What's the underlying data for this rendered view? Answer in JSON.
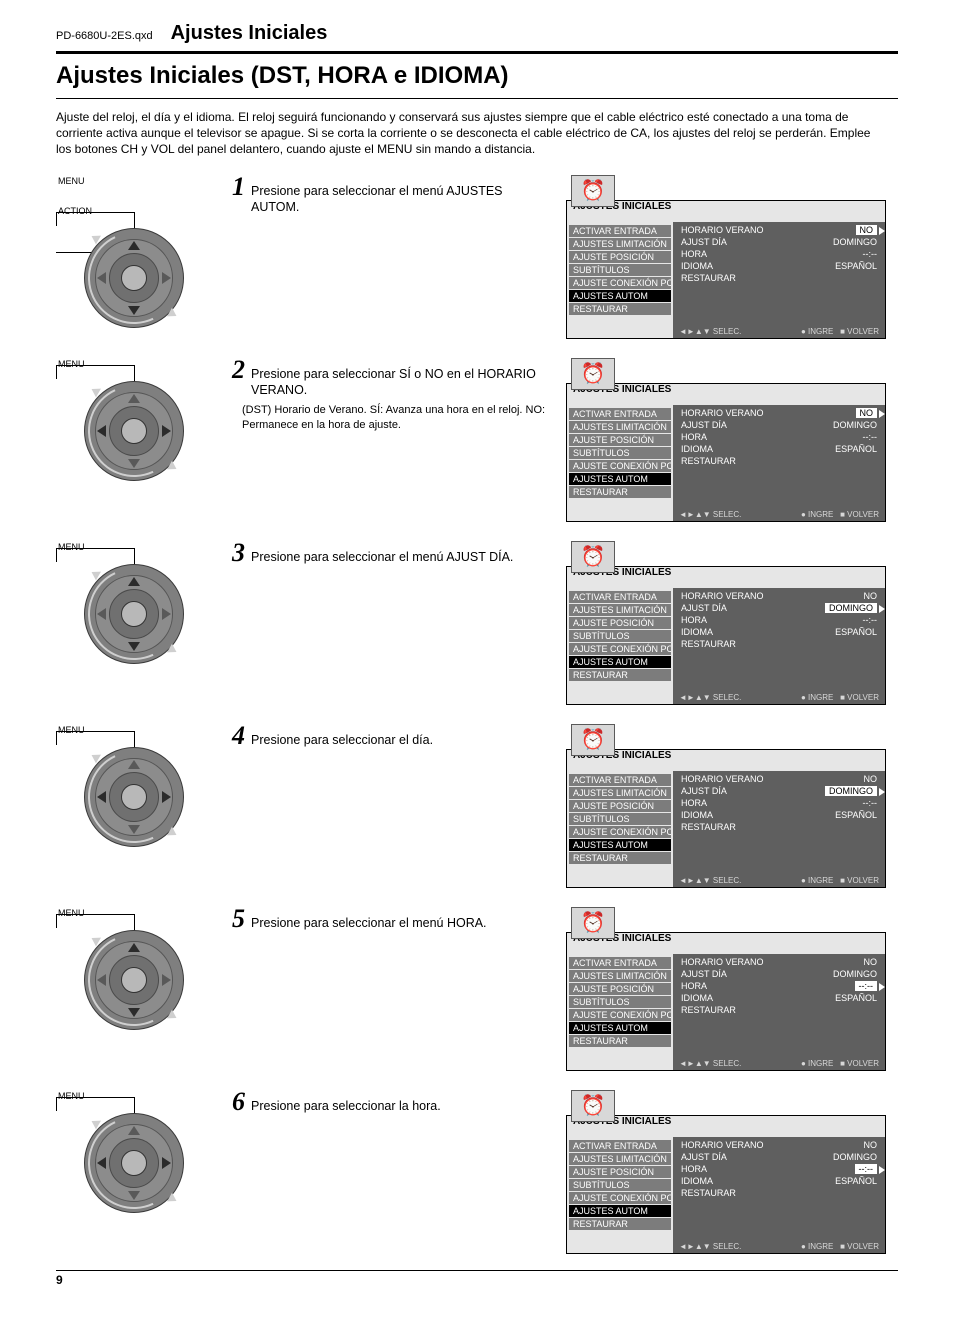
{
  "doc_name": "PD-6680U-2ES.qxd",
  "section_title": "Ajustes Iniciales",
  "page_title": "Ajustes Iniciales (DST, HORA e IDIOMA)",
  "intro_text": "Ajuste del reloj, el día y el idioma. El reloj seguirá funcionando y conservará sus ajustes siempre que el cable eléctrico esté conectado a una toma de corriente activa aunque el televisor se apague. Si se corta la corriente o se desconecta el cable eléctrico de CA, los ajustes del reloj se perderán. Emplee los botones CH y VOL del panel delantero, cuando ajuste el MENU sin mando a distancia.",
  "page_number": "9",
  "common_menu": {
    "title": "AJUSTES INICIALES",
    "items": [
      "ACTIVAR ENTRADA",
      "AJUSTES LIMITACIÓN",
      "AJUSTE POSICIÓN",
      "SUBTÍTULOS",
      "AJUSTE CONEXIÓN PC",
      "AJUSTES AUTOM",
      "RESTAURAR"
    ],
    "selected_index": 5,
    "hint_left": "SELEC.",
    "hint_right_enter": "INGRE",
    "hint_right_back": "VOLVER",
    "clock_icon_label": "clock-icon"
  },
  "steps": [
    {
      "num": "1",
      "text": "Presione para seleccionar el menú AJUSTES AUTOM.",
      "callouts": [
        "MENU",
        "ACTION"
      ],
      "highlight": [
        "up",
        "down",
        "center"
      ],
      "values": [
        {
          "k": "HORARIO VERANO",
          "v": "NO",
          "box": true,
          "sel": true
        },
        {
          "k": "AJUST DÍA",
          "v": "DOMINGO"
        },
        {
          "k": "HORA",
          "v": "--:--"
        },
        {
          "k": "IDIOMA",
          "v": "ESPAÑOL"
        },
        {
          "k": "RESTAURAR",
          "v": ""
        }
      ]
    },
    {
      "num": "2",
      "text": "Presione para seleccionar SÍ o NO en el HORARIO VERANO.",
      "note": "(DST) Horario de Verano. SÍ: Avanza una hora en el reloj. NO: Permanece en la hora de ajuste.",
      "callouts": [
        "MENU"
      ],
      "highlight": [
        "left",
        "right",
        "center"
      ],
      "values": [
        {
          "k": "HORARIO VERANO",
          "v": "NO",
          "box": true,
          "sel": true
        },
        {
          "k": "AJUST DÍA",
          "v": "DOMINGO"
        },
        {
          "k": "HORA",
          "v": "--:--"
        },
        {
          "k": "IDIOMA",
          "v": "ESPAÑOL"
        },
        {
          "k": "RESTAURAR",
          "v": ""
        }
      ]
    },
    {
      "num": "3",
      "text": "Presione para seleccionar el menú AJUST DÍA.",
      "callouts": [
        "MENU"
      ],
      "highlight": [
        "up",
        "down",
        "center"
      ],
      "values": [
        {
          "k": "HORARIO VERANO",
          "v": "NO"
        },
        {
          "k": "AJUST DÍA",
          "v": "DOMINGO",
          "box": true,
          "sel": true
        },
        {
          "k": "HORA",
          "v": "--:--"
        },
        {
          "k": "IDIOMA",
          "v": "ESPAÑOL"
        },
        {
          "k": "RESTAURAR",
          "v": ""
        }
      ]
    },
    {
      "num": "4",
      "text": "Presione para seleccionar el día.",
      "callouts": [
        "MENU"
      ],
      "highlight": [
        "left",
        "right",
        "center"
      ],
      "values": [
        {
          "k": "HORARIO VERANO",
          "v": "NO"
        },
        {
          "k": "AJUST DÍA",
          "v": "DOMINGO",
          "box": true,
          "sel": true
        },
        {
          "k": "HORA",
          "v": "--:--"
        },
        {
          "k": "IDIOMA",
          "v": "ESPAÑOL"
        },
        {
          "k": "RESTAURAR",
          "v": ""
        }
      ]
    },
    {
      "num": "5",
      "text": "Presione para seleccionar el menú HORA.",
      "callouts": [
        "MENU"
      ],
      "highlight": [
        "up",
        "down",
        "center"
      ],
      "values": [
        {
          "k": "HORARIO VERANO",
          "v": "NO"
        },
        {
          "k": "AJUST DÍA",
          "v": "DOMINGO"
        },
        {
          "k": "HORA",
          "v": "--:--",
          "box": true,
          "sel": true
        },
        {
          "k": "IDIOMA",
          "v": "ESPAÑOL"
        },
        {
          "k": "RESTAURAR",
          "v": ""
        }
      ]
    },
    {
      "num": "6",
      "text": "Presione para seleccionar la hora.",
      "callouts": [
        "MENU"
      ],
      "highlight": [
        "left",
        "right",
        "center"
      ],
      "values": [
        {
          "k": "HORARIO VERANO",
          "v": "NO"
        },
        {
          "k": "AJUST DÍA",
          "v": "DOMINGO"
        },
        {
          "k": "HORA",
          "v": "--:--",
          "box": true,
          "sel": true
        },
        {
          "k": "IDIOMA",
          "v": "ESPAÑOL"
        },
        {
          "k": "RESTAURAR",
          "v": ""
        }
      ]
    }
  ]
}
